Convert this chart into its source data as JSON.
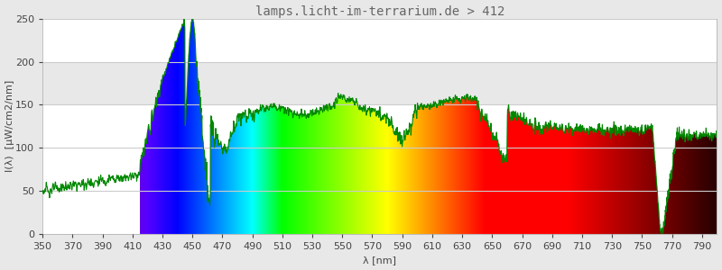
{
  "title": "lamps.licht-im-terrarium.de > 412",
  "xlabel": "λ [nm]",
  "ylabel": "I(λ)  [µW/cm2/nm]",
  "xlim": [
    350,
    800
  ],
  "ylim": [
    0,
    250
  ],
  "yticks": [
    0,
    50,
    100,
    150,
    200,
    250
  ],
  "xticks": [
    350,
    370,
    390,
    410,
    430,
    450,
    470,
    490,
    510,
    530,
    550,
    570,
    590,
    610,
    630,
    650,
    670,
    690,
    710,
    730,
    750,
    770,
    790
  ],
  "bg_color": "#e8e8e8",
  "plot_bg_color": "#ffffff",
  "grid_color": "#cccccc",
  "line_color": "#008800",
  "title_color": "#666666",
  "title_fontsize": 10,
  "label_fontsize": 8,
  "tick_fontsize": 8
}
